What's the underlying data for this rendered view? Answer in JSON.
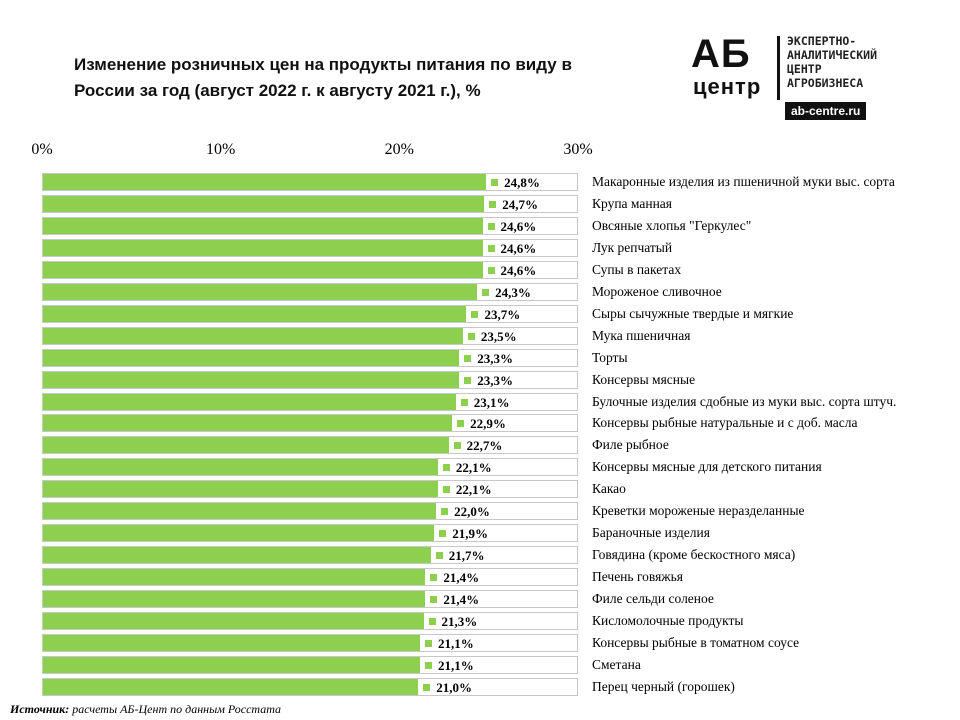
{
  "title": "Изменение розничных цен на продукты питания по виду в России за год (август 2022 г. к августу 2021 г.), %",
  "logo": {
    "ab": "АБ",
    "centr": "центр",
    "line1": "ЭКСПЕРТНО-",
    "line2": "АНАЛИТИЧЕСКИЙ",
    "line3": "ЦЕНТР",
    "line4": "АГРОБИЗНЕСА",
    "url": "ab-centre.ru"
  },
  "source": {
    "label": "Источник:",
    "text": "расчеты АБ-Цент по данным Росстата"
  },
  "colors": {
    "bar": "#8dcf4e",
    "border": "#c8c8c8"
  },
  "chart_data": {
    "type": "bar",
    "orientation": "horizontal",
    "xlim": [
      0,
      30
    ],
    "xticks": [
      "0%",
      "10%",
      "20%",
      "30%"
    ],
    "categories": [
      "Макаронные изделия из пшеничной муки выс. сорта",
      "Крупа манная",
      "Овсяные хлопья \"Геркулес\"",
      "Лук репчатый",
      "Супы в пакетах",
      "Мороженое сливочное",
      "Сыры сычужные твердые и мягкие",
      "Мука пшеничная",
      "Торты",
      "Консервы мясные",
      "Булочные изделия сдобные из муки выс. сорта штуч.",
      "Консервы рыбные натуральные и с доб. масла",
      "Филе рыбное",
      "Консервы мясные для детского питания",
      "Какао",
      "Креветки мороженые неразделанные",
      "Бараночные изделия",
      "Говядина (кроме бескостного мяса)",
      "Печень говяжья",
      "Филе сельди соленое",
      "Кисломолочные продукты",
      "Консервы рыбные в томатном соусе",
      "Сметана",
      "Перец черный (горошек)"
    ],
    "values": [
      24.8,
      24.7,
      24.6,
      24.6,
      24.6,
      24.3,
      23.7,
      23.5,
      23.3,
      23.3,
      23.1,
      22.9,
      22.7,
      22.1,
      22.1,
      22.0,
      21.9,
      21.7,
      21.4,
      21.4,
      21.3,
      21.1,
      21.1,
      21.0
    ],
    "value_labels": [
      "24,8%",
      "24,7%",
      "24,6%",
      "24,6%",
      "24,6%",
      "24,3%",
      "23,7%",
      "23,5%",
      "23,3%",
      "23,3%",
      "23,1%",
      "22,9%",
      "22,7%",
      "22,1%",
      "22,1%",
      "22,0%",
      "21,9%",
      "21,7%",
      "21,4%",
      "21,4%",
      "21,3%",
      "21,1%",
      "21,1%",
      "21,0%"
    ]
  }
}
